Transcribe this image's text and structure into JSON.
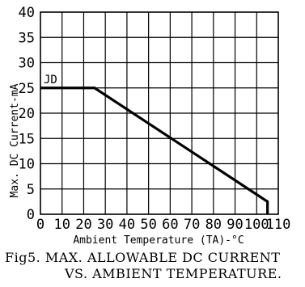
{
  "chart_data": {
    "type": "line",
    "title": "",
    "xlabel": "Ambient Temperature (TA)-°C",
    "ylabel": "Max. DC Current-mA",
    "xlim": [
      0,
      110
    ],
    "ylim": [
      0,
      40
    ],
    "x_ticks": [
      0,
      10,
      20,
      30,
      40,
      50,
      60,
      70,
      80,
      90,
      100,
      110
    ],
    "y_ticks": [
      0,
      5,
      10,
      15,
      20,
      25,
      30,
      35,
      40
    ],
    "grid": true,
    "series": [
      {
        "name": "JD",
        "color": "#000000",
        "x": [
          0,
          25,
          105,
          105
        ],
        "y": [
          25,
          25,
          2.5,
          0
        ]
      }
    ]
  },
  "caption": {
    "line1": "Fig5. MAX. ALLOWABLE DC CURRENT",
    "line2": "VS. AMBIENT TEMPERATURE."
  }
}
